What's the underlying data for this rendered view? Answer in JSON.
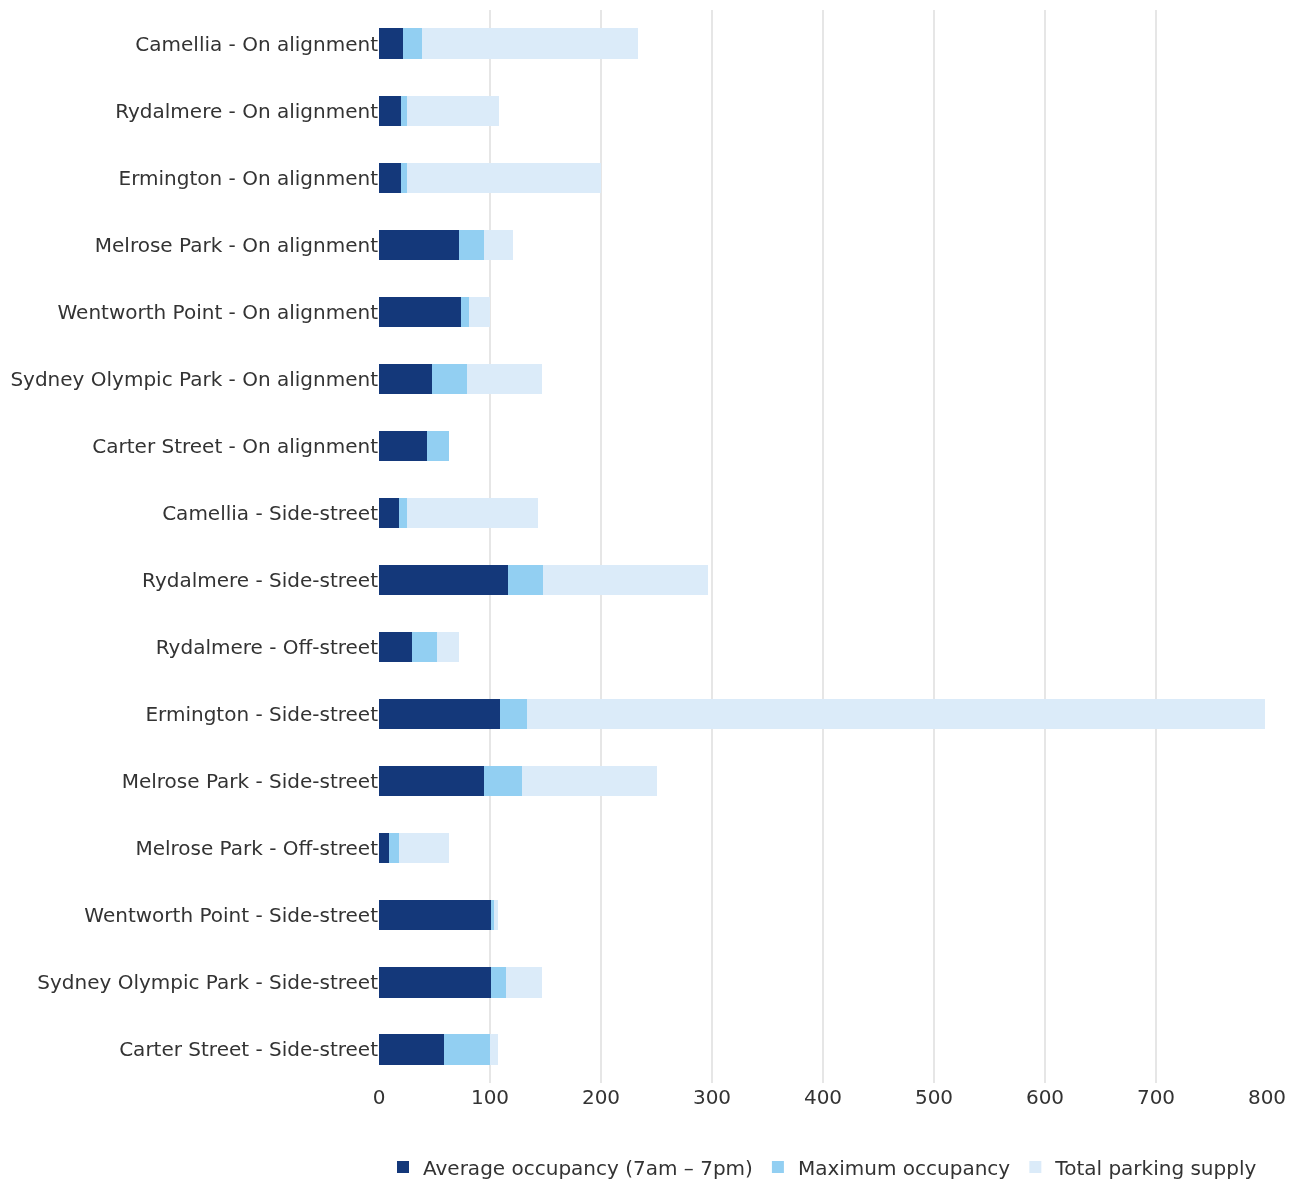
{
  "chart_data": {
    "type": "bar",
    "orientation": "horizontal",
    "stacked": true,
    "categories": [
      "Camellia - On alignment",
      "Rydalmere - On alignment",
      "Ermington - On alignment",
      "Melrose Park - On alignment",
      "Wentworth Point - On alignment",
      "Sydney Olympic Park - On alignment",
      "Carter Street - On alignment",
      "Camellia - Side-street",
      "Rydalmere - Side-street",
      "Rydalmere - Off-street",
      "Ermington - Side-street",
      "Melrose Park - Side-street",
      "Melrose Park - Off-street",
      "Wentworth Point - Side-street",
      "Sydney Olympic Park - Side-street",
      "Carter Street - Side-street"
    ],
    "series": [
      {
        "name": "Average occupancy (7am – 7pm)",
        "color": "#14387a",
        "values": [
          22,
          20,
          20,
          72,
          74,
          48,
          43,
          18,
          116,
          30,
          109,
          95,
          9,
          101,
          101,
          59
        ]
      },
      {
        "name": "Maximum occupancy",
        "color": "#92cff2",
        "values": [
          17,
          5,
          5,
          23,
          7,
          31,
          20,
          7,
          32,
          22,
          24,
          34,
          9,
          3,
          13,
          41
        ]
      },
      {
        "name": "Total parking supply",
        "color": "#dbebf9",
        "values": [
          194,
          83,
          175,
          26,
          19,
          68,
          0,
          118,
          148,
          20,
          665,
          121,
          45,
          3,
          33,
          7
        ]
      }
    ],
    "xlim": [
      0,
      800
    ],
    "xticks": [
      0,
      100,
      200,
      300,
      400,
      500,
      600,
      700,
      800
    ],
    "grid": "x",
    "legend": "bottom"
  }
}
